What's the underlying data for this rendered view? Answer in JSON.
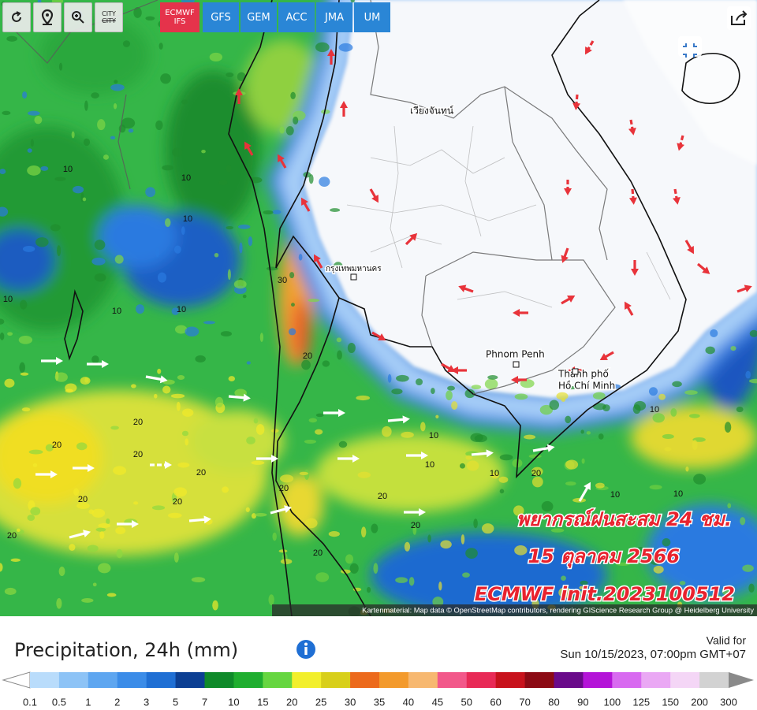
{
  "toolbar": {
    "city_button": "CITY",
    "models": [
      "ECMWF IFS",
      "GFS",
      "GEM",
      "ACC",
      "JMA",
      "UM"
    ]
  },
  "map": {
    "places": {
      "vientiane": "เวียงจันทน์",
      "bangkok": "กรุงเทพมหานคร",
      "phnom_penh": "Phnom Penh",
      "hcmc": [
        "Thành phố",
        "Hồ Chí Minh"
      ]
    },
    "contour_labels": [
      10,
      10,
      10,
      10,
      10,
      10,
      30,
      20,
      20,
      20,
      20,
      20,
      20,
      20,
      20,
      20,
      10,
      10,
      20,
      20,
      20,
      20,
      10,
      10,
      10,
      10
    ],
    "overlay": {
      "line1": "พยากรณ์ฝนสะสม 24 ชม.",
      "line2": "15 ตุลาคม 2566",
      "line3": "ECMWF init.2023100512"
    },
    "attribution": "Kartenmaterial: Map data © OpenStreetMap contributors, rendering GIScience Research Group @ Heidelberg University"
  },
  "legend": {
    "title": "Precipitation, 24h (mm)",
    "valid_label": "Valid for",
    "valid_time": "Sun 10/15/2023, 07:00pm GMT+07",
    "ticks": [
      0.1,
      0.5,
      1,
      2,
      3,
      5,
      7,
      10,
      15,
      20,
      25,
      30,
      35,
      40,
      45,
      50,
      60,
      70,
      80,
      90,
      100,
      125,
      150,
      200,
      300
    ],
    "colors": [
      "#b9dcfb",
      "#8dc3f6",
      "#5ea6f0",
      "#3b8ce8",
      "#1f6fd4",
      "#0c3f93",
      "#0f8a2a",
      "#1fae2f",
      "#66d640",
      "#f2ef2c",
      "#d8cf1a",
      "#ec6a1c",
      "#f39a2c",
      "#f7b870",
      "#f2588a",
      "#e82a56",
      "#c8121c",
      "#8c0a14",
      "#6a0a8a",
      "#b414d8",
      "#d86af0",
      "#eaa8f4",
      "#f4d6f6",
      "#d2d2d2"
    ]
  }
}
